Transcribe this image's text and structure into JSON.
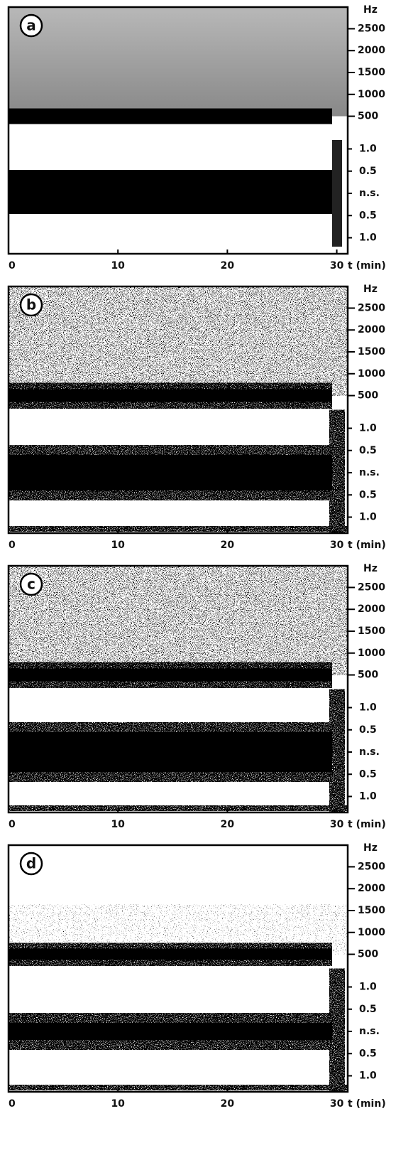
{
  "chart_data": [
    {
      "type": "spectrogram",
      "label": "a",
      "xlim": [
        0,
        31
      ],
      "xticks": [
        0,
        10,
        20,
        30
      ],
      "xlabel": "t (min)",
      "ylabel": "Hz",
      "ylim": [
        200,
        2800
      ],
      "yticks": [
        500,
        1000,
        1500,
        2000,
        2500
      ],
      "y2lim": [
        -1.2,
        1.2
      ],
      "y2ticks": [
        {
          "value": 1,
          "label": "1.0"
        },
        {
          "value": 0.5,
          "label": "0.5"
        },
        {
          "value": 0,
          "label": "n.s."
        },
        {
          "value": -0.5,
          "label": "0.5"
        },
        {
          "value": -1,
          "label": "1.0"
        }
      ]
    },
    {
      "type": "spectrogram",
      "label": "b",
      "xlim": [
        0,
        31
      ],
      "xticks": [
        0,
        10,
        20,
        30
      ],
      "xlabel": "t (min)",
      "ylabel": "Hz",
      "ylim": [
        200,
        2800
      ],
      "yticks": [
        500,
        1000,
        1500,
        2000,
        2500
      ],
      "y2lim": [
        -1.2,
        1.2
      ],
      "y2ticks": [
        {
          "value": 1,
          "label": "1.0"
        },
        {
          "value": 0.5,
          "label": "0.5"
        },
        {
          "value": 0,
          "label": "n.s."
        },
        {
          "value": -0.5,
          "label": "0.5"
        },
        {
          "value": -1,
          "label": "1.0"
        }
      ]
    },
    {
      "type": "spectrogram",
      "label": "c",
      "xlim": [
        0,
        31
      ],
      "xticks": [
        0,
        10,
        20,
        30
      ],
      "xlabel": "t (min)",
      "ylabel": "Hz",
      "ylim": [
        200,
        2800
      ],
      "yticks": [
        500,
        1000,
        1500,
        2000,
        2500
      ],
      "y2lim": [
        -1.2,
        1.2
      ],
      "y2ticks": [
        {
          "value": 1,
          "label": "1.0"
        },
        {
          "value": 0.5,
          "label": "0.5"
        },
        {
          "value": 0,
          "label": "n.s."
        },
        {
          "value": -0.5,
          "label": "0.5"
        },
        {
          "value": -1,
          "label": "1.0"
        }
      ]
    },
    {
      "type": "spectrogram",
      "label": "d",
      "xlim": [
        0,
        31
      ],
      "xticks": [
        0,
        10,
        20,
        30
      ],
      "xlabel": "t (min)",
      "ylabel": "Hz",
      "ylim": [
        200,
        2800
      ],
      "yticks": [
        500,
        1000,
        1500,
        2000,
        2500
      ],
      "y2lim": [
        -1.2,
        1.2
      ],
      "y2ticks": [
        {
          "value": 1,
          "label": "1.0"
        },
        {
          "value": 0.5,
          "label": "0.5"
        },
        {
          "value": 0,
          "label": "n.s."
        },
        {
          "value": -0.5,
          "label": "0.5"
        },
        {
          "value": -1,
          "label": "1.0"
        }
      ]
    }
  ]
}
